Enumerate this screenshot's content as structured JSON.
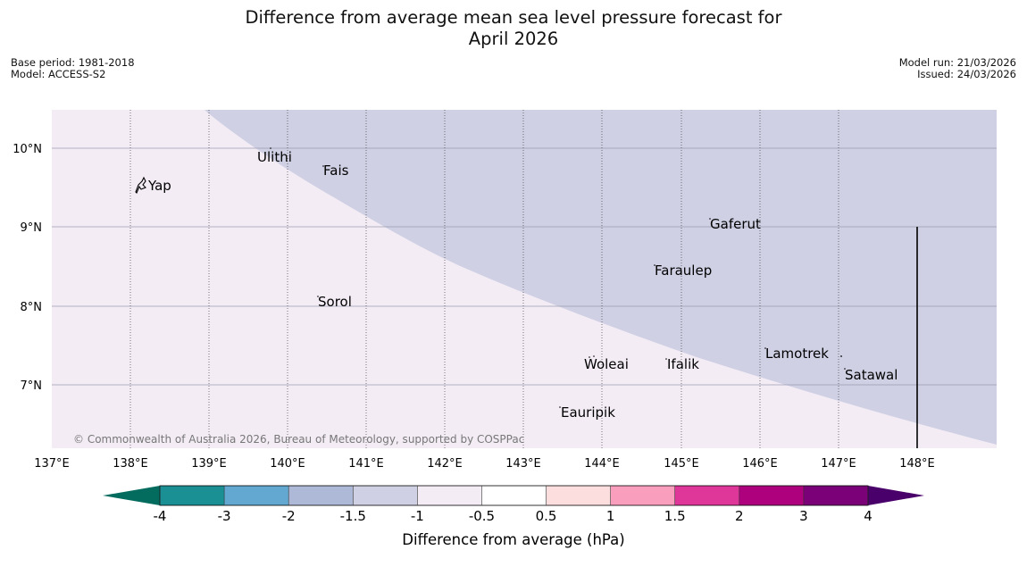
{
  "header": {
    "title_line1": "Difference from average mean sea level pressure forecast for",
    "title_line2": "April 2026",
    "base_period": "Base period: 1981-2018",
    "model": "Model: ACCESS-S2",
    "model_run": "Model run: 21/03/2026",
    "issued": "Issued: 24/03/2026"
  },
  "map": {
    "lat_labels": [
      "10°N",
      "9°N",
      "8°N",
      "7°N"
    ],
    "lon_labels": [
      "137°E",
      "138°E",
      "139°E",
      "140°E",
      "141°E",
      "142°E",
      "143°E",
      "144°E",
      "145°E",
      "146°E",
      "147°E",
      "148°E"
    ],
    "places": [
      {
        "name": "Yap"
      },
      {
        "name": "Ulithi"
      },
      {
        "name": "Fais"
      },
      {
        "name": "Gaferut"
      },
      {
        "name": "Faraulep"
      },
      {
        "name": "Sorol"
      },
      {
        "name": "Lamotrek"
      },
      {
        "name": "Woleai"
      },
      {
        "name": "Ifalik"
      },
      {
        "name": "Satawal"
      },
      {
        "name": "Eauripik"
      }
    ],
    "fill_colors": {
      "-1 to -0.5": "#f3ecf5",
      "-1.5 to -1": "#cfd0e4"
    },
    "copyright": "© Commonwealth of Australia 2026, Bureau of Meteorology, supported by COSPPac"
  },
  "colorbar": {
    "tick_labels": [
      "-4",
      "-3",
      "-2",
      "-1.5",
      "-1",
      "-0.5",
      "0.5",
      "1",
      "1.5",
      "2",
      "3",
      "4"
    ],
    "colors": [
      "#036c5f",
      "#1a9095",
      "#62a8d1",
      "#adb9d7",
      "#cfd0e4",
      "#f3ecf5",
      "#ffffff",
      "#fddede",
      "#f99fbd",
      "#df3799",
      "#ae017e",
      "#7a0177",
      "#49006a"
    ],
    "label": "Difference from average (hPa)"
  }
}
